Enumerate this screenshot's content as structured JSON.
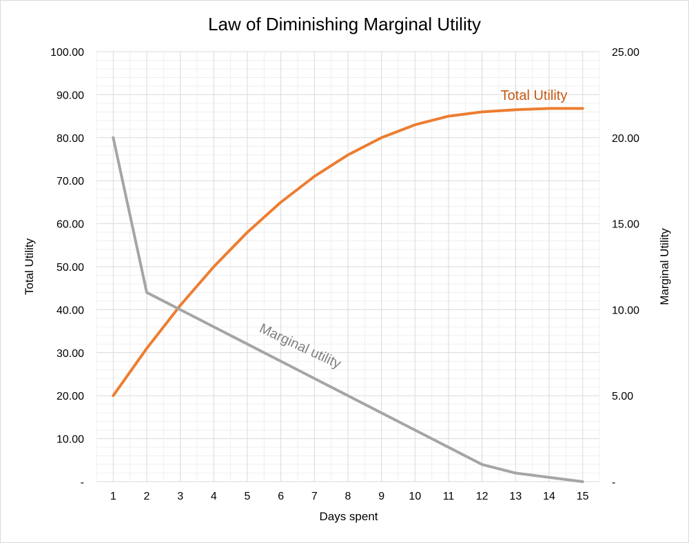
{
  "chart_data": {
    "type": "line",
    "title": "Law of Diminishing Marginal Utility",
    "xlabel": "Days spent",
    "ylabel_left": "Total Utility",
    "ylabel_right": "Marginal Utility",
    "x": [
      1,
      2,
      3,
      4,
      5,
      6,
      7,
      8,
      9,
      10,
      11,
      12,
      13,
      14,
      15
    ],
    "ylim_left": [
      0,
      100
    ],
    "ylim_right": [
      0,
      25
    ],
    "left_ticks": [
      "-",
      "10.00",
      "20.00",
      "30.00",
      "40.00",
      "50.00",
      "60.00",
      "70.00",
      "80.00",
      "90.00",
      "100.00"
    ],
    "right_ticks": [
      "-",
      "5.00",
      "10.00",
      "15.00",
      "20.00",
      "25.00"
    ],
    "grid": true,
    "series": [
      {
        "name": "Total Utility",
        "axis": "left",
        "color": "#ED7D31",
        "label": "Total Utility",
        "label_color": "#C55A11",
        "values": [
          20,
          31,
          41,
          50,
          58,
          65,
          71,
          76,
          80,
          83,
          85,
          86,
          86.5,
          86.8,
          86.8
        ]
      },
      {
        "name": "Marginal utility",
        "axis": "right",
        "color": "#A5A5A5",
        "label": "Marginal utility",
        "label_color": "#808080",
        "values": [
          20,
          11,
          10,
          9,
          8,
          7,
          6,
          5,
          4,
          3,
          2,
          1,
          0.5,
          0.25,
          0
        ]
      }
    ]
  }
}
